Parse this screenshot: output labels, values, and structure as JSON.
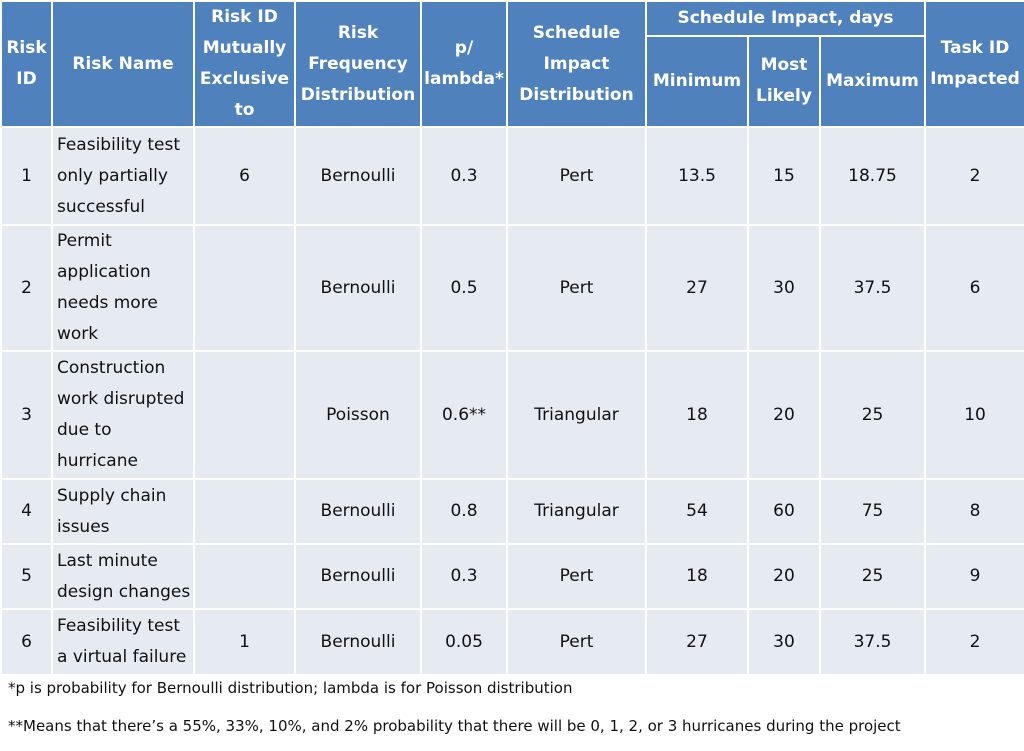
{
  "headers": {
    "risk_id": "Risk ID",
    "risk_name": "Risk Name",
    "mutually_exclusive": "Risk ID Mutually Exclusive to",
    "frequency_distribution": "Risk Frequency Distribution",
    "p_lambda": "p/ lambda*",
    "impact_distribution": "Schedule Impact Distribution",
    "schedule_impact_group": "Schedule Impact, days",
    "minimum": "Minimum",
    "most_likely": "Most Likely",
    "maximum": "Maximum",
    "task_id": "Task ID Impacted"
  },
  "rows": [
    {
      "id": "1",
      "name": "Feasibility test only partially successful",
      "mutex": "6",
      "freq": "Bernoulli",
      "p": "0.3",
      "impact": "Pert",
      "min": "13.5",
      "likely": "15",
      "max": "18.75",
      "task": "2"
    },
    {
      "id": "2",
      "name": "Permit application needs more work",
      "mutex": "",
      "freq": "Bernoulli",
      "p": "0.5",
      "impact": "Pert",
      "min": "27",
      "likely": "30",
      "max": "37.5",
      "task": "6"
    },
    {
      "id": "3",
      "name": "Construction work disrupted due to hurricane",
      "mutex": "",
      "freq": "Poisson",
      "p": "0.6**",
      "impact": "Triangular",
      "min": "18",
      "likely": "20",
      "max": "25",
      "task": "10"
    },
    {
      "id": "4",
      "name": "Supply chain issues",
      "mutex": "",
      "freq": "Bernoulli",
      "p": "0.8",
      "impact": "Triangular",
      "min": "54",
      "likely": "60",
      "max": "75",
      "task": "8"
    },
    {
      "id": "5",
      "name": "Last minute design changes",
      "mutex": "",
      "freq": "Bernoulli",
      "p": "0.3",
      "impact": "Pert",
      "min": "18",
      "likely": "20",
      "max": "25",
      "task": "9"
    },
    {
      "id": "6",
      "name": "Feasibility test a virtual failure",
      "mutex": "1",
      "freq": "Bernoulli",
      "p": "0.05",
      "impact": "Pert",
      "min": "27",
      "likely": "30",
      "max": "37.5",
      "task": "2"
    }
  ],
  "footnotes": [
    "*p is probability for Bernoulli distribution; lambda is for Poisson distribution",
    "**Means that there’s a 55%, 33%, 10%, and 2% probability that there will be 0, 1, 2, or 3 hurricanes during the project"
  ]
}
